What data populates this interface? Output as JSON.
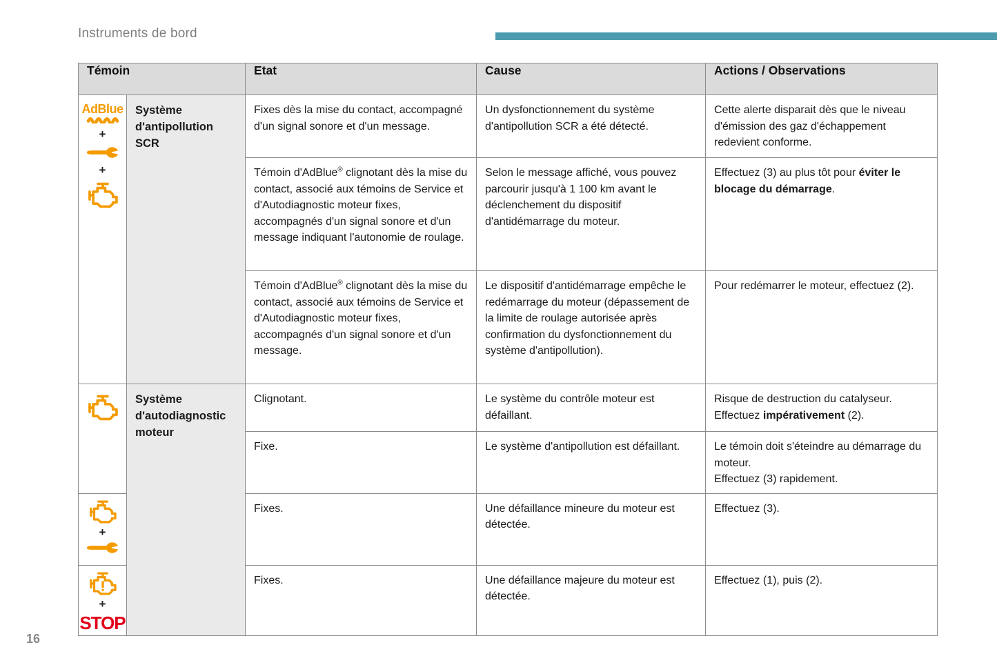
{
  "theme": {
    "icon_orange": "#F49B00",
    "stop_red": "#E2001A",
    "accent_bar": "#4D9BAF",
    "header_gray": "#7E7E81",
    "table_border": "#8C8C8C",
    "header_bg": "#DBDBDB",
    "label_bg": "#EAEAEA",
    "text": "#1B1B1B"
  },
  "page": {
    "title": "Instruments de bord",
    "page_number": "16"
  },
  "icons": {
    "adblue_label": "AdBlue",
    "plus": "+",
    "stop_label": "STOP"
  },
  "table": {
    "headers": {
      "temoin": "Témoin",
      "etat": "Etat",
      "cause": "Cause",
      "actions": "Actions / Observations"
    },
    "sections": [
      {
        "label": "Système d'antipollution SCR"
      },
      {
        "label": "Système d'autodiagnostic moteur"
      }
    ],
    "rows": [
      {
        "etat": "Fixes dès la mise du contact, accompagné d'un signal sonore et d'un message.",
        "cause": "Un dysfonctionnement du système d'antipollution SCR a été détecté.",
        "actions": "Cette alerte disparait dès que le niveau d'émission des gaz d'échappement redevient conforme."
      },
      {
        "etat": [
          {
            "t": "Témoin d'AdBlue"
          },
          {
            "t": "®",
            "sup": true
          },
          {
            "t": " clignotant dès la mise du contact, associé aux témoins de Service et d'Autodiagnostic moteur fixes, accompagnés d'un signal sonore et d'un message indiquant l'autonomie de roulage."
          }
        ],
        "cause": "Selon le message affiché, vous pouvez parcourir jusqu'à 1 100 km avant le déclenchement du dispositif d'antidémarrage du moteur.",
        "actions": [
          {
            "t": "Effectuez (3) au plus tôt pour "
          },
          {
            "t": "éviter le blocage du démarrage",
            "b": true
          },
          {
            "t": "."
          }
        ]
      },
      {
        "etat": [
          {
            "t": "Témoin d'AdBlue"
          },
          {
            "t": "®",
            "sup": true
          },
          {
            "t": " clignotant dès la mise du contact, associé aux témoins de Service et d'Autodiagnostic moteur fixes, accompagnés d'un signal sonore et d'un message."
          }
        ],
        "cause": "Le dispositif d'antidémarrage empêche le redémarrage du moteur (dépassement de la limite de roulage autorisée après confirmation du dysfonctionnement du système d'antipollution).",
        "actions": "Pour redémarrer le moteur, effectuez (2)."
      },
      {
        "etat": "Clignotant.",
        "cause": "Le système du contrôle moteur est défaillant.",
        "actions": [
          {
            "t": "Risque de destruction du catalyseur.\nEffectuez "
          },
          {
            "t": "impérativement",
            "b": true
          },
          {
            "t": " (2)."
          }
        ]
      },
      {
        "etat": "Fixe.",
        "cause": "Le système d'antipollution est défaillant.",
        "actions": "Le témoin doit s'éteindre au démarrage du moteur.\nEffectuez (3) rapidement."
      },
      {
        "etat": "Fixes.",
        "cause": "Une défaillance mineure du moteur est détectée.",
        "actions": "Effectuez (3)."
      },
      {
        "etat": "Fixes.",
        "cause": "Une défaillance majeure du moteur est détectée.",
        "actions": "Effectuez (1), puis (2)."
      }
    ]
  }
}
